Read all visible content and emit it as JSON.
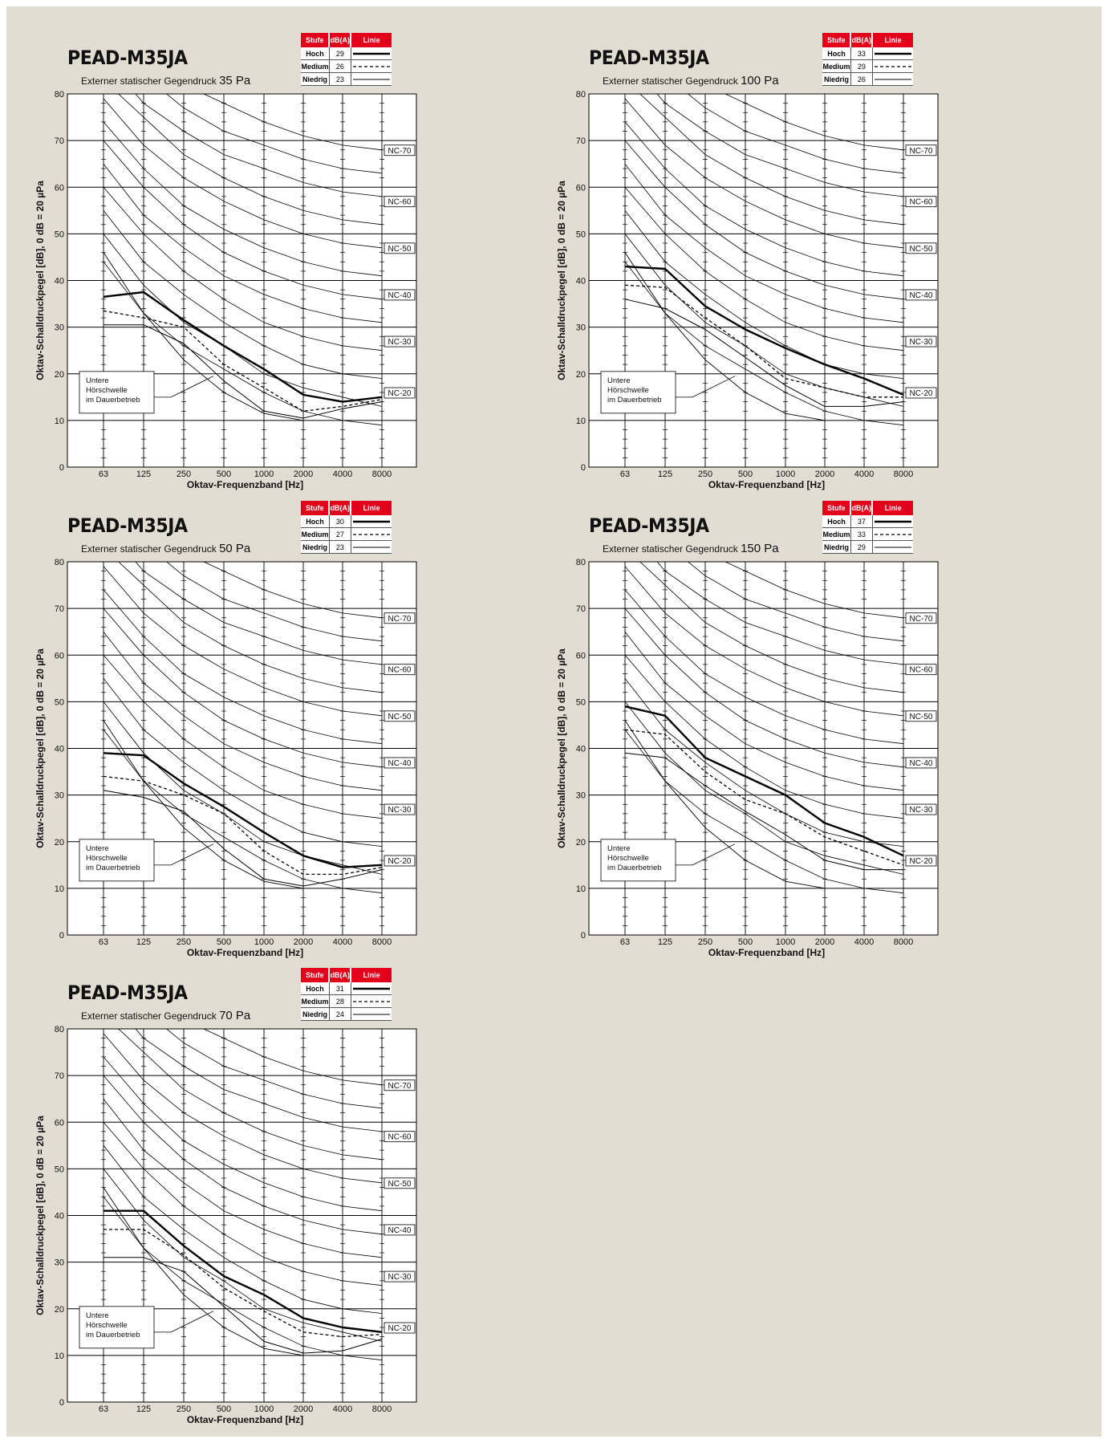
{
  "page": {
    "background": "#e2ddd3",
    "accent": "#e3001b"
  },
  "common": {
    "ylabel": "Oktav-Schalldruckpegel [dB], 0 dB = 20 µPa",
    "xlabel": "Oktav-Frequenzband [Hz]",
    "legend_headers": [
      "Stufe",
      "dB(A)",
      "Linie"
    ],
    "levels": [
      "Hoch",
      "Medium",
      "Niedrig"
    ],
    "threshold_label": [
      "Untere",
      "Hörschwelle",
      "im Dauerbetrieb"
    ],
    "nc_labels": [
      "NC-70",
      "NC-60",
      "NC-50",
      "NC-40",
      "NC-30",
      "NC-20"
    ]
  },
  "panels": [
    {
      "title": "PEAD-M35JA",
      "subtitle": "Externer statischer Gegendruck",
      "pressure": "35 Pa",
      "legend": [
        {
          "level": "Hoch",
          "dba": "29",
          "style": "solid-thick"
        },
        {
          "level": "Medium",
          "dba": "26",
          "style": "dashed"
        },
        {
          "level": "Niedrig",
          "dba": "23",
          "style": "solid-thin"
        }
      ]
    },
    {
      "title": "PEAD-M35JA",
      "subtitle": "Externer statischer Gegendruck",
      "pressure": "100 Pa",
      "legend": [
        {
          "level": "Hoch",
          "dba": "33",
          "style": "solid-thick"
        },
        {
          "level": "Medium",
          "dba": "29",
          "style": "dashed"
        },
        {
          "level": "Niedrig",
          "dba": "26",
          "style": "solid-thin"
        }
      ]
    },
    {
      "title": "PEAD-M35JA",
      "subtitle": "Externer statischer Gegendruck",
      "pressure": "50 Pa",
      "legend": [
        {
          "level": "Hoch",
          "dba": "30",
          "style": "solid-thick"
        },
        {
          "level": "Medium",
          "dba": "27",
          "style": "dashed"
        },
        {
          "level": "Niedrig",
          "dba": "23",
          "style": "solid-thin"
        }
      ]
    },
    {
      "title": "PEAD-M35JA",
      "subtitle": "Externer statischer Gegendruck",
      "pressure": "150 Pa",
      "legend": [
        {
          "level": "Hoch",
          "dba": "37",
          "style": "solid-thick"
        },
        {
          "level": "Medium",
          "dba": "33",
          "style": "dashed"
        },
        {
          "level": "Niedrig",
          "dba": "29",
          "style": "solid-thin"
        }
      ]
    },
    {
      "title": "PEAD-M35JA",
      "subtitle": "Externer statischer Gegendruck",
      "pressure": "70 Pa",
      "legend": [
        {
          "level": "Hoch",
          "dba": "31",
          "style": "solid-thick"
        },
        {
          "level": "Medium",
          "dba": "28",
          "style": "dashed"
        },
        {
          "level": "Niedrig",
          "dba": "24",
          "style": "solid-thin"
        }
      ]
    }
  ],
  "chart_data": [
    {
      "type": "line",
      "x": [
        "63",
        "125",
        "250",
        "500",
        "1000",
        "2000",
        "4000",
        "8000"
      ],
      "ylim": [
        0,
        80
      ],
      "yticks": [
        0,
        10,
        20,
        30,
        40,
        50,
        60,
        70,
        80
      ],
      "grid": true,
      "series": [
        {
          "name": "Hoch",
          "style": "solid-thick",
          "values": [
            36.5,
            37.5,
            31.5,
            26,
            21,
            15.5,
            14,
            15
          ]
        },
        {
          "name": "Medium",
          "style": "dashed",
          "values": [
            33.5,
            32,
            30,
            22,
            17,
            12,
            13,
            14.5
          ]
        },
        {
          "name": "Niedrig",
          "style": "solid-thin",
          "values": [
            30.5,
            30.5,
            26.5,
            18.5,
            12,
            10.5,
            12.5,
            14
          ]
        }
      ]
    },
    {
      "type": "line",
      "x": [
        "63",
        "125",
        "250",
        "500",
        "1000",
        "2000",
        "4000",
        "8000"
      ],
      "ylim": [
        0,
        80
      ],
      "yticks": [
        0,
        10,
        20,
        30,
        40,
        50,
        60,
        70,
        80
      ],
      "grid": true,
      "series": [
        {
          "name": "Hoch",
          "style": "solid-thick",
          "values": [
            43,
            42.5,
            34.5,
            29.5,
            25.5,
            22,
            19,
            15.5
          ]
        },
        {
          "name": "Medium",
          "style": "dashed",
          "values": [
            39,
            38.5,
            32,
            26,
            19,
            17,
            15,
            15
          ]
        },
        {
          "name": "Niedrig",
          "style": "solid-thin",
          "values": [
            36,
            34,
            29.5,
            23.5,
            17.5,
            13,
            13,
            14
          ]
        }
      ]
    },
    {
      "type": "line",
      "x": [
        "63",
        "125",
        "250",
        "500",
        "1000",
        "2000",
        "4000",
        "8000"
      ],
      "ylim": [
        0,
        80
      ],
      "yticks": [
        0,
        10,
        20,
        30,
        40,
        50,
        60,
        70,
        80
      ],
      "grid": true,
      "series": [
        {
          "name": "Hoch",
          "style": "solid-thick",
          "values": [
            39,
            38.5,
            32.5,
            27.5,
            22,
            17,
            14.5,
            15
          ]
        },
        {
          "name": "Medium",
          "style": "dashed",
          "values": [
            34,
            33,
            30,
            26,
            18,
            13,
            13,
            14.5
          ]
        },
        {
          "name": "Niedrig",
          "style": "solid-thin",
          "values": [
            31,
            29.5,
            26.5,
            18.5,
            12,
            10.5,
            12,
            14
          ]
        }
      ]
    },
    {
      "type": "line",
      "x": [
        "63",
        "125",
        "250",
        "500",
        "1000",
        "2000",
        "4000",
        "8000"
      ],
      "ylim": [
        0,
        80
      ],
      "yticks": [
        0,
        10,
        20,
        30,
        40,
        50,
        60,
        70,
        80
      ],
      "grid": true,
      "series": [
        {
          "name": "Hoch",
          "style": "solid-thick",
          "values": [
            49,
            47,
            38,
            34,
            30,
            24,
            21,
            17
          ]
        },
        {
          "name": "Medium",
          "style": "dashed",
          "values": [
            44,
            43,
            35,
            29,
            26,
            21,
            18,
            15
          ]
        },
        {
          "name": "Niedrig",
          "style": "solid-thin",
          "values": [
            39,
            38,
            32,
            26.5,
            21.5,
            16,
            14,
            14
          ]
        }
      ]
    },
    {
      "type": "line",
      "x": [
        "63",
        "125",
        "250",
        "500",
        "1000",
        "2000",
        "4000",
        "8000"
      ],
      "ylim": [
        0,
        80
      ],
      "yticks": [
        0,
        10,
        20,
        30,
        40,
        50,
        60,
        70,
        80
      ],
      "grid": true,
      "series": [
        {
          "name": "Hoch",
          "style": "solid-thick",
          "values": [
            41,
            41,
            33.5,
            27,
            23,
            18,
            16,
            15
          ]
        },
        {
          "name": "Medium",
          "style": "dashed",
          "values": [
            37,
            37,
            31.5,
            24.5,
            19.5,
            15,
            14,
            14.5
          ]
        },
        {
          "name": "Niedrig",
          "style": "solid-thin",
          "values": [
            31,
            31,
            28,
            20.5,
            13,
            10.5,
            11,
            13.5
          ]
        }
      ]
    }
  ]
}
